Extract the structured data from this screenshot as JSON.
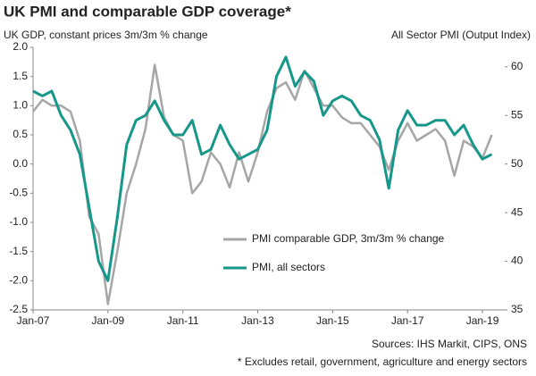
{
  "chart_data": {
    "type": "line",
    "title": "UK PMI and comparable GDP coverage*",
    "y_label": "UK GDP, constant prices 3m/3m % change",
    "y2_label": "All Sector PMI (Output Index)",
    "notes": [
      "Sources: IHS Markit, CIPS, ONS",
      "* Excludes retail, government, agriculture and energy sectors"
    ],
    "categories": [
      "Jan-07",
      null,
      null,
      null,
      null,
      null,
      null,
      null,
      "Jan-09",
      null,
      null,
      null,
      null,
      null,
      null,
      null,
      "Jan-11",
      null,
      null,
      null,
      null,
      null,
      null,
      null,
      "Jan-13",
      null,
      null,
      null,
      null,
      null,
      null,
      null,
      "Jan-15",
      null,
      null,
      null,
      null,
      null,
      null,
      null,
      "Jan-17",
      null,
      null,
      null,
      null,
      null,
      null,
      null,
      "Jan-19",
      null
    ],
    "series": [
      {
        "name": "PMI comparable GDP, 3m/3m % change",
        "color": "#a6a6a6",
        "values": [
          0.9,
          1.1,
          1.0,
          1.0,
          0.9,
          0.4,
          -0.9,
          -1.2,
          -2.4,
          -1.5,
          -0.5,
          0.0,
          0.6,
          1.7,
          0.8,
          0.5,
          0.4,
          -0.5,
          -0.3,
          0.2,
          0.0,
          -0.4,
          0.2,
          -0.3,
          0.2,
          0.9,
          1.3,
          1.4,
          1.1,
          1.6,
          1.3,
          1.0,
          1.0,
          0.8,
          0.7,
          0.7,
          0.5,
          0.3,
          -0.1,
          0.4,
          0.7,
          0.4,
          0.5,
          0.6,
          0.4,
          -0.2,
          0.4,
          0.3,
          0.1,
          0.5
        ]
      },
      {
        "name": "PMI, all sectors",
        "color": "#16978a",
        "axis": "y2",
        "values": [
          57.5,
          57.0,
          57.5,
          55.0,
          53.5,
          51.0,
          45.5,
          40.0,
          38.0,
          44.5,
          52.0,
          54.5,
          55.0,
          56.5,
          54.5,
          53.0,
          53.0,
          54.5,
          51.0,
          51.5,
          54.0,
          52.0,
          50.5,
          51.0,
          51.5,
          53.5,
          59.0,
          61.0,
          58.0,
          59.5,
          58.5,
          55.0,
          56.5,
          57.0,
          56.5,
          55.0,
          54.5,
          52.5,
          47.5,
          53.5,
          55.5,
          54.0,
          54.0,
          54.5,
          54.5,
          53.0,
          54.0,
          52.0,
          50.5,
          51.0
        ]
      }
    ],
    "ylim": [
      -2.5,
      2.0
    ],
    "yticks": [
      {
        "value": 2.0,
        "label": "2.0"
      },
      1.5,
      {
        "value": 1.0,
        "label": "1.0"
      },
      0.5,
      {
        "value": 0.0,
        "label": "0.0"
      },
      -0.5,
      {
        "value": -1.0,
        "label": "-1.0"
      },
      -1.5,
      {
        "value": -2.0,
        "label": "-2.0"
      },
      -2.5
    ],
    "y2lim": [
      35,
      62
    ],
    "y2ticks": [
      35,
      40,
      45,
      50,
      55,
      60
    ],
    "legend": "lower right"
  }
}
